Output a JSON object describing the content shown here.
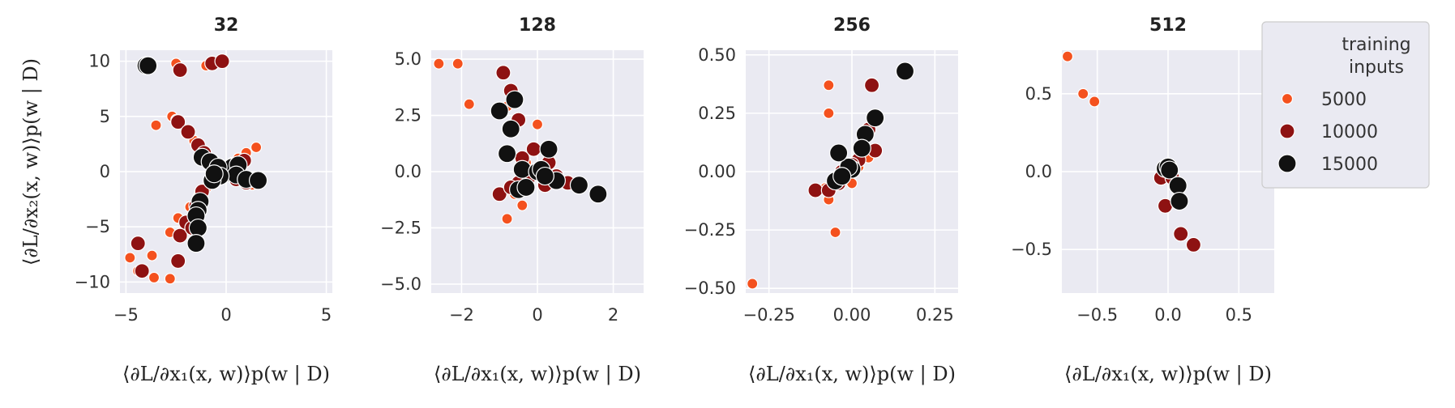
{
  "figure": {
    "y_axis_label": "⟨∂L/∂x₂(x, w)⟩p(w | D)",
    "x_axis_label": "⟨∂L/∂x₁(x, w)⟩p(w | D)"
  },
  "legend": {
    "title_line1": "training",
    "title_line2": "inputs",
    "entries": [
      {
        "label": "5000",
        "color": "#f4511e"
      },
      {
        "label": "10000",
        "color": "#8e1212"
      },
      {
        "label": "15000",
        "color": "#111111"
      }
    ],
    "placement": "top-right"
  },
  "chart_data": [
    {
      "type": "scatter",
      "title": "32",
      "xlim": [
        -5.3,
        5.3
      ],
      "ylim": [
        -11,
        11
      ],
      "xticks": [
        -5,
        0,
        5
      ],
      "xtick_labels": [
        "−5",
        "0",
        "5"
      ],
      "yticks": [
        -10,
        -5,
        0,
        5,
        10
      ],
      "ytick_labels": [
        "−10",
        "−5",
        "0",
        "5",
        "10"
      ],
      "series": [
        {
          "name": "5000",
          "points": [
            [
              -2.5,
              9.8
            ],
            [
              -1,
              9.6
            ],
            [
              -0.5,
              9.9
            ],
            [
              -3.5,
              4.2
            ],
            [
              -2.7,
              5
            ],
            [
              -2.5,
              4.7
            ],
            [
              -2,
              3.5
            ],
            [
              -1.6,
              2.8
            ],
            [
              -1.3,
              2.2
            ],
            [
              -1,
              1.6
            ],
            [
              -0.6,
              1
            ],
            [
              -0.3,
              0.5
            ],
            [
              0.3,
              0.8
            ],
            [
              0.6,
              1.2
            ],
            [
              1,
              1.7
            ],
            [
              1.5,
              2.2
            ],
            [
              0.4,
              -0.5
            ],
            [
              0.8,
              -0.8
            ],
            [
              1.3,
              -1.2
            ],
            [
              -0.5,
              -0.7
            ],
            [
              -1,
              -1.5
            ],
            [
              -1.4,
              -2.3
            ],
            [
              -1.8,
              -3.2
            ],
            [
              -2.4,
              -4.2
            ],
            [
              -2.8,
              -5.5
            ],
            [
              -3.7,
              -7.6
            ],
            [
              -3.6,
              -9.6
            ],
            [
              -2.8,
              -9.7
            ],
            [
              -4.8,
              -7.8
            ],
            [
              -4.4,
              -9
            ],
            [
              0,
              -0.2
            ]
          ]
        },
        {
          "name": "10000",
          "points": [
            [
              -2.3,
              9.2
            ],
            [
              -0.7,
              9.8
            ],
            [
              -0.2,
              10
            ],
            [
              -2.4,
              4.5
            ],
            [
              -1.9,
              3.6
            ],
            [
              -1.4,
              2.4
            ],
            [
              -1.1,
              1.7
            ],
            [
              -0.8,
              1
            ],
            [
              0.4,
              0.6
            ],
            [
              0.9,
              1
            ],
            [
              0.5,
              -0.7
            ],
            [
              1,
              -1
            ],
            [
              -0.6,
              -0.9
            ],
            [
              -1.2,
              -1.8
            ],
            [
              -1.5,
              -3.1
            ],
            [
              -2,
              -4.6
            ],
            [
              -2.3,
              -5.8
            ],
            [
              -2.4,
              -8.1
            ],
            [
              -4.4,
              -6.5
            ],
            [
              -4.2,
              -9
            ],
            [
              -1.7,
              -5.1
            ]
          ]
        },
        {
          "name": "15000",
          "points": [
            [
              -4,
              9.6
            ],
            [
              -3.9,
              9.6
            ],
            [
              -1.2,
              1.3
            ],
            [
              -0.8,
              0.9
            ],
            [
              0,
              0
            ],
            [
              -0.1,
              0.2
            ],
            [
              0.1,
              -0.1
            ],
            [
              0.3,
              0.4
            ],
            [
              -0.4,
              0.4
            ],
            [
              0.6,
              0.6
            ],
            [
              0.5,
              -0.3
            ],
            [
              1,
              -0.7
            ],
            [
              1.6,
              -0.8
            ],
            [
              -0.3,
              -0.4
            ],
            [
              -0.7,
              -0.8
            ],
            [
              -1.3,
              -2.7
            ],
            [
              -1.4,
              -3.5
            ],
            [
              -1.5,
              -4
            ],
            [
              -1.4,
              -5.1
            ],
            [
              -1.5,
              -6.5
            ],
            [
              -0.6,
              -0.2
            ]
          ]
        }
      ]
    },
    {
      "type": "scatter",
      "title": "128",
      "xlim": [
        -2.8,
        2.8
      ],
      "ylim": [
        -5.4,
        5.4
      ],
      "xticks": [
        -2,
        0,
        2
      ],
      "xtick_labels": [
        "−2",
        "0",
        "2"
      ],
      "yticks": [
        -5,
        -2.5,
        0,
        2.5,
        5
      ],
      "ytick_labels": [
        "−5.0",
        "−2.5",
        "0.0",
        "2.5",
        "5.0"
      ],
      "series": [
        {
          "name": "5000",
          "points": [
            [
              -2.6,
              4.8
            ],
            [
              -2.1,
              4.8
            ],
            [
              -1.8,
              3
            ],
            [
              -0.8,
              2.9
            ],
            [
              0,
              2.1
            ],
            [
              -0.8,
              -2.1
            ],
            [
              -0.4,
              -1.5
            ],
            [
              -0.6,
              -1
            ],
            [
              0.2,
              0.3
            ],
            [
              0.5,
              -0.4
            ],
            [
              -0.3,
              0.4
            ],
            [
              0.1,
              -0.2
            ]
          ]
        },
        {
          "name": "10000",
          "points": [
            [
              -0.9,
              4.4
            ],
            [
              -0.7,
              3.6
            ],
            [
              -0.5,
              2.3
            ],
            [
              -0.1,
              1
            ],
            [
              -0.4,
              0.6
            ],
            [
              -0.5,
              -0.5
            ],
            [
              -1,
              -1
            ],
            [
              -0.7,
              -0.7
            ],
            [
              0.2,
              -0.6
            ],
            [
              0.5,
              -0.2
            ],
            [
              0.8,
              -0.5
            ],
            [
              0.3,
              0.4
            ],
            [
              -0.2,
              -0.2
            ]
          ]
        },
        {
          "name": "15000",
          "points": [
            [
              -0.6,
              3.2
            ],
            [
              -1,
              2.7
            ],
            [
              -0.7,
              1.9
            ],
            [
              -0.8,
              0.8
            ],
            [
              -0.4,
              0.1
            ],
            [
              0,
              0
            ],
            [
              0.1,
              0.1
            ],
            [
              0.3,
              1
            ],
            [
              0.5,
              -0.4
            ],
            [
              1.1,
              -0.6
            ],
            [
              1.6,
              -1
            ],
            [
              -0.5,
              -0.8
            ],
            [
              -0.3,
              -0.7
            ],
            [
              0.2,
              -0.2
            ]
          ]
        }
      ]
    },
    {
      "type": "scatter",
      "title": "256",
      "xlim": [
        -0.32,
        0.32
      ],
      "ylim": [
        -0.52,
        0.52
      ],
      "xticks": [
        -0.25,
        0,
        0.25
      ],
      "xtick_labels": [
        "−0.25",
        "0.00",
        "0.25"
      ],
      "yticks": [
        -0.5,
        -0.25,
        0,
        0.25,
        0.5
      ],
      "ytick_labels": [
        "−0.50",
        "−0.25",
        "0.00",
        "0.25",
        "0.50"
      ],
      "series": [
        {
          "name": "5000",
          "points": [
            [
              -0.3,
              -0.48
            ],
            [
              -0.07,
              0.37
            ],
            [
              -0.07,
              0.25
            ],
            [
              -0.05,
              -0.26
            ],
            [
              -0.07,
              -0.12
            ],
            [
              -0.08,
              -0.07
            ],
            [
              0.04,
              0.08
            ],
            [
              0.05,
              0.06
            ],
            [
              0,
              -0.05
            ],
            [
              -0.02,
              -0.02
            ],
            [
              0.02,
              0.02
            ]
          ]
        },
        {
          "name": "10000",
          "points": [
            [
              -0.11,
              -0.08
            ],
            [
              -0.07,
              -0.08
            ],
            [
              -0.03,
              0
            ],
            [
              0.02,
              0.05
            ],
            [
              0.05,
              0.18
            ],
            [
              0.06,
              0.37
            ],
            [
              0.07,
              0.09
            ],
            [
              0.03,
              0.1
            ],
            [
              0,
              0.03
            ],
            [
              -0.04,
              -0.05
            ]
          ]
        },
        {
          "name": "15000",
          "points": [
            [
              0.16,
              0.43
            ],
            [
              0.07,
              0.23
            ],
            [
              0.04,
              0.16
            ],
            [
              0.03,
              0.1
            ],
            [
              0,
              0.01
            ],
            [
              -0.01,
              0.02
            ],
            [
              -0.04,
              0.08
            ],
            [
              -0.05,
              -0.04
            ],
            [
              -0.03,
              -0.02
            ]
          ]
        }
      ]
    },
    {
      "type": "scatter",
      "title": "512",
      "xlim": [
        -0.75,
        0.75
      ],
      "ylim": [
        -0.78,
        0.78
      ],
      "xticks": [
        -0.5,
        0,
        0.5
      ],
      "xtick_labels": [
        "−0.5",
        "0.0",
        "0.5"
      ],
      "yticks": [
        -0.5,
        0,
        0.5
      ],
      "ytick_labels": [
        "−0.5",
        "0.0",
        "0.5"
      ],
      "series": [
        {
          "name": "5000",
          "points": [
            [
              -0.71,
              0.74
            ],
            [
              -0.6,
              0.5
            ],
            [
              -0.52,
              0.45
            ],
            [
              -0.05,
              -0.03
            ],
            [
              0.02,
              -0.02
            ]
          ]
        },
        {
          "name": "10000",
          "points": [
            [
              -0.05,
              -0.04
            ],
            [
              -0.02,
              -0.22
            ],
            [
              0.09,
              -0.4
            ],
            [
              0.18,
              -0.47
            ],
            [
              0.03,
              -0.04
            ]
          ]
        },
        {
          "name": "15000",
          "points": [
            [
              -0.02,
              0.02
            ],
            [
              0,
              0.03
            ],
            [
              0.01,
              0.01
            ],
            [
              0.07,
              -0.09
            ],
            [
              0.08,
              -0.19
            ]
          ]
        }
      ]
    }
  ]
}
